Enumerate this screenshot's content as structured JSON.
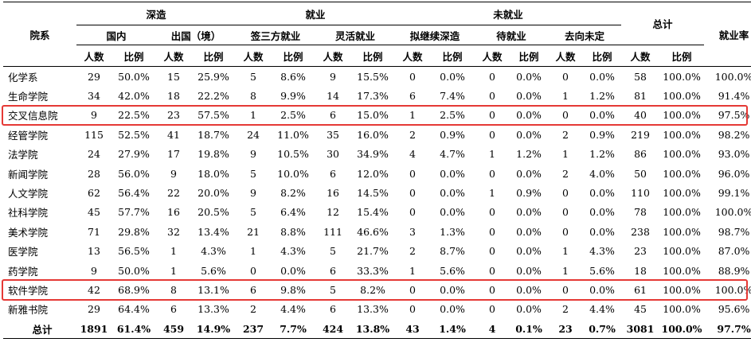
{
  "header": {
    "dept": "院系",
    "groups": [
      {
        "label": "深造",
        "span": 4
      },
      {
        "label": "就业",
        "span": 4
      },
      {
        "label": "未就业",
        "span": 6
      }
    ],
    "total": "总计",
    "rate": "就业率",
    "subgroups": [
      "国内",
      "出国（境）",
      "签三方就业",
      "灵活就业",
      "拟继续深造",
      "待就业",
      "去向未定"
    ],
    "count": "人数",
    "ratio": "比例"
  },
  "rows": [
    {
      "dept": "化学系",
      "v": [
        "29",
        "50.0%",
        "15",
        "25.9%",
        "5",
        "8.6%",
        "9",
        "15.5%",
        "0",
        "0.0%",
        "0",
        "0.0%",
        "0",
        "0.0%",
        "58",
        "100.0%",
        "100.0%"
      ]
    },
    {
      "dept": "生命学院",
      "v": [
        "34",
        "42.0%",
        "18",
        "22.2%",
        "8",
        "9.9%",
        "14",
        "17.3%",
        "6",
        "7.4%",
        "0",
        "0.0%",
        "1",
        "1.2%",
        "81",
        "100.0%",
        "91.4%"
      ]
    },
    {
      "dept": "交叉信息院",
      "v": [
        "9",
        "22.5%",
        "23",
        "57.5%",
        "1",
        "2.5%",
        "6",
        "15.0%",
        "1",
        "2.5%",
        "0",
        "0.0%",
        "0",
        "0.0%",
        "40",
        "100.0%",
        "97.5%"
      ],
      "highlight": true
    },
    {
      "dept": "经管学院",
      "v": [
        "115",
        "52.5%",
        "41",
        "18.7%",
        "24",
        "11.0%",
        "35",
        "16.0%",
        "2",
        "0.9%",
        "0",
        "0.0%",
        "2",
        "0.9%",
        "219",
        "100.0%",
        "98.2%"
      ]
    },
    {
      "dept": "法学院",
      "v": [
        "24",
        "27.9%",
        "17",
        "19.8%",
        "9",
        "10.5%",
        "30",
        "34.9%",
        "4",
        "4.7%",
        "1",
        "1.2%",
        "1",
        "1.2%",
        "86",
        "100.0%",
        "93.0%"
      ]
    },
    {
      "dept": "新闻学院",
      "v": [
        "28",
        "56.0%",
        "9",
        "18.0%",
        "5",
        "10.0%",
        "6",
        "12.0%",
        "0",
        "0.0%",
        "0",
        "0.0%",
        "2",
        "4.0%",
        "50",
        "100.0%",
        "96.0%"
      ]
    },
    {
      "dept": "人文学院",
      "v": [
        "62",
        "56.4%",
        "22",
        "20.0%",
        "9",
        "8.2%",
        "16",
        "14.5%",
        "0",
        "0.0%",
        "1",
        "0.9%",
        "0",
        "0.0%",
        "110",
        "100.0%",
        "99.1%"
      ]
    },
    {
      "dept": "社科学院",
      "v": [
        "45",
        "57.7%",
        "16",
        "20.5%",
        "5",
        "6.4%",
        "12",
        "15.4%",
        "0",
        "0.0%",
        "0",
        "0.0%",
        "0",
        "0.0%",
        "78",
        "100.0%",
        "100.0%"
      ]
    },
    {
      "dept": "美术学院",
      "v": [
        "71",
        "29.8%",
        "32",
        "13.4%",
        "21",
        "8.8%",
        "111",
        "46.6%",
        "3",
        "1.3%",
        "0",
        "0.0%",
        "0",
        "0.0%",
        "238",
        "100.0%",
        "98.7%"
      ]
    },
    {
      "dept": "医学院",
      "v": [
        "13",
        "56.5%",
        "1",
        "4.3%",
        "1",
        "4.3%",
        "5",
        "21.7%",
        "2",
        "8.7%",
        "0",
        "0.0%",
        "1",
        "4.3%",
        "23",
        "100.0%",
        "87.0%"
      ]
    },
    {
      "dept": "药学院",
      "v": [
        "9",
        "50.0%",
        "1",
        "5.6%",
        "0",
        "0.0%",
        "6",
        "33.3%",
        "1",
        "5.6%",
        "0",
        "0.0%",
        "1",
        "5.6%",
        "18",
        "100.0%",
        "88.9%"
      ]
    },
    {
      "dept": "软件学院",
      "v": [
        "42",
        "68.9%",
        "8",
        "13.1%",
        "6",
        "9.8%",
        "5",
        "8.2%",
        "0",
        "0.0%",
        "0",
        "0.0%",
        "0",
        "0.0%",
        "61",
        "100.0%",
        "100.0%"
      ],
      "highlight": true
    },
    {
      "dept": "新雅书院",
      "v": [
        "29",
        "64.4%",
        "6",
        "13.3%",
        "2",
        "4.4%",
        "6",
        "13.3%",
        "0",
        "0.0%",
        "0",
        "0.0%",
        "2",
        "4.4%",
        "45",
        "100.0%",
        "95.6%"
      ]
    }
  ],
  "total_row": {
    "dept": "总计",
    "v": [
      "1891",
      "61.4%",
      "459",
      "14.9%",
      "237",
      "7.7%",
      "424",
      "13.8%",
      "43",
      "1.4%",
      "4",
      "0.1%",
      "23",
      "0.7%",
      "3081",
      "100.0%",
      "97.7%"
    ]
  },
  "colors": {
    "highlight_border": "#e53935",
    "rule": "#000000"
  }
}
